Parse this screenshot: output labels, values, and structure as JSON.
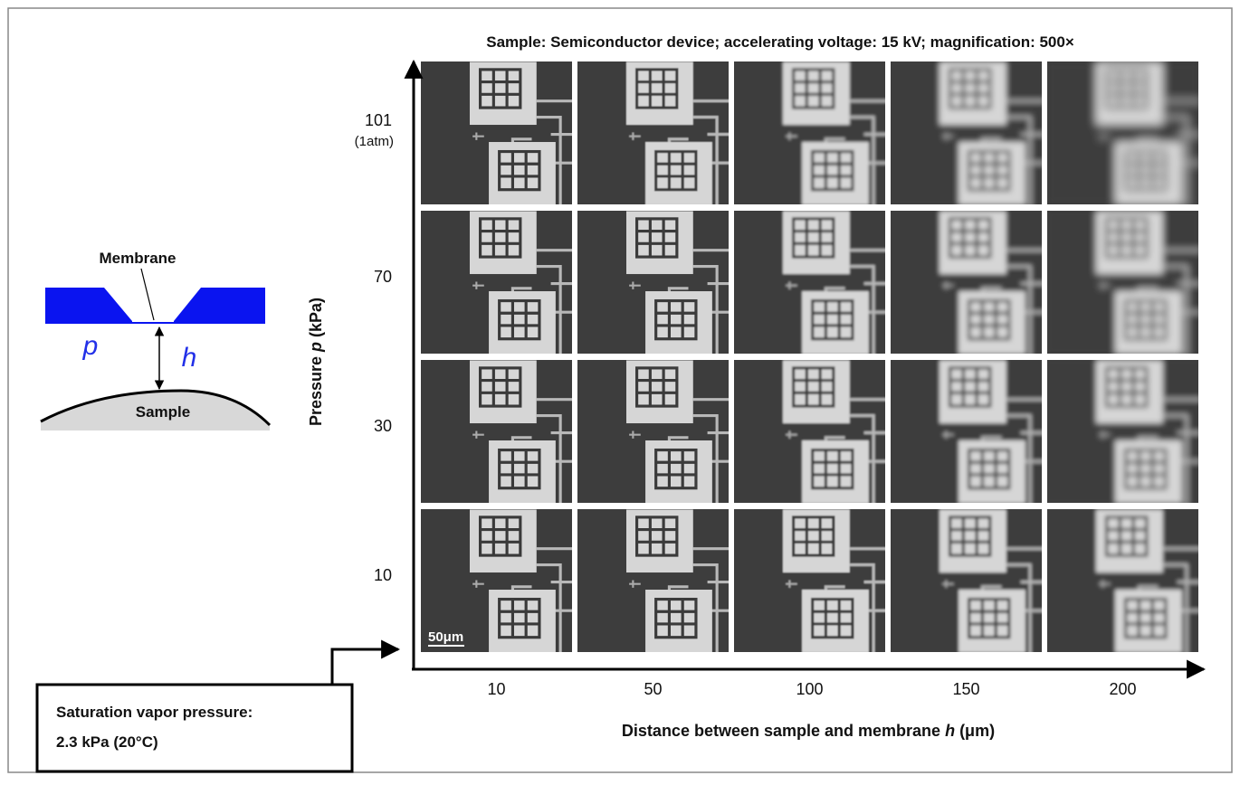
{
  "title": "Sample: Semiconductor device; accelerating voltage: 15 kV; magnification: 500×",
  "y_axis": {
    "label": {
      "pre": "Pressure ",
      "var": "p",
      "post": " (kPa)"
    },
    "ticks": [
      {
        "value": "101",
        "note": "(1atm)"
      },
      {
        "value": "70"
      },
      {
        "value": "30"
      },
      {
        "value": "10"
      }
    ]
  },
  "x_axis": {
    "label": {
      "pre": "Distance between sample and membrane ",
      "var": "h",
      "post": " (μm)"
    },
    "ticks": [
      "10",
      "50",
      "100",
      "150",
      "200"
    ]
  },
  "scale_bar": "50μm",
  "schematic": {
    "membrane": "Membrane",
    "pressure": "p",
    "distance": "h",
    "sample": "Sample"
  },
  "note": {
    "lines": [
      "Saturation vapor pressure:",
      "2.3 kPa (20°C)"
    ]
  }
}
